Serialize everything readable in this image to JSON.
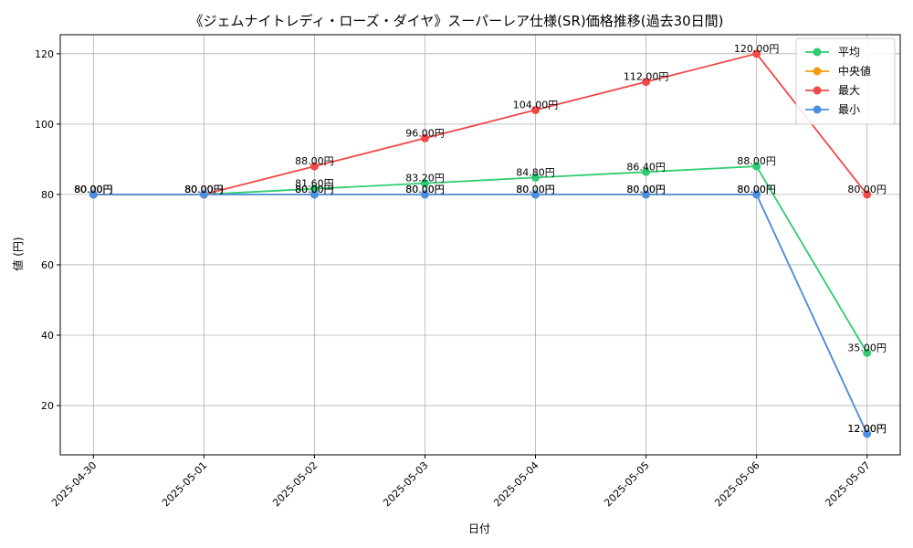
{
  "chart_data": {
    "type": "line",
    "title": "《ジェムナイトレディ・ローズ・ダイヤ》スーパーレア仕様(SR)価格推移(過去30日間)",
    "xlabel": "日付",
    "ylabel": "値 (円)",
    "x": [
      "2025-04-30",
      "2025-05-01",
      "2025-05-02",
      "2025-05-03",
      "2025-05-04",
      "2025-05-05",
      "2025-05-06",
      "2025-05-07"
    ],
    "ylim": [
      6.0,
      125.4
    ],
    "yticks": [
      20,
      40,
      60,
      80,
      100,
      120
    ],
    "grid": true,
    "legend_position": "top-right",
    "series": [
      {
        "name": "平均",
        "color": "#2ecc71",
        "values": [
          80,
          80,
          81.6,
          83.2,
          84.8,
          86.4,
          88,
          35
        ],
        "labels": [
          "80.00円",
          "80.00円",
          "81.60円",
          "83.20円",
          "84.80円",
          "86.40円",
          "88.00円",
          "35.00円"
        ]
      },
      {
        "name": "中央値",
        "color": "#f39c12",
        "values": [
          80,
          80,
          80,
          80,
          80,
          80,
          80,
          12
        ],
        "labels": [
          "80.00円",
          "80.00円",
          "80.00円",
          "80.00円",
          "80.00円",
          "80.00円",
          "80.00円",
          "12.00円"
        ]
      },
      {
        "name": "最大",
        "color": "#f04848",
        "values": [
          80,
          80,
          88,
          96,
          104,
          112,
          120,
          80
        ],
        "labels": [
          "80.00円",
          "80.00円",
          "88.00円",
          "96.00円",
          "104.00円",
          "112.00円",
          "120.00円",
          "80.00円"
        ]
      },
      {
        "name": "最小",
        "color": "#4a90e2",
        "values": [
          80,
          80,
          80,
          80,
          80,
          80,
          80,
          12
        ],
        "labels": [
          "80.00円",
          "80.00円",
          "80.00円",
          "80.00円",
          "80.00円",
          "80.00円",
          "80.00円",
          "12.00円"
        ]
      }
    ]
  }
}
